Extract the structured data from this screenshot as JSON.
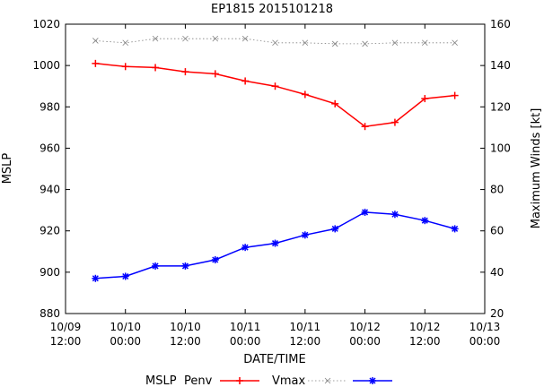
{
  "chart_data": {
    "type": "line",
    "title": "EP1815 2015101218",
    "xlabel": "DATE/TIME",
    "ylabel": "MSLP",
    "y2label": "Maximum Winds [kt]",
    "grid": false,
    "legend_position": "bottom",
    "xlim": [
      "2015-10-09 12:00",
      "2015-10-13 00:00"
    ],
    "ylim": [
      880,
      1020
    ],
    "y2lim": [
      20,
      160
    ],
    "x_ticks": [
      {
        "date": "2015-10-09 12:00",
        "line1": "10/09",
        "line2": "12:00"
      },
      {
        "date": "2015-10-10 00:00",
        "line1": "10/10",
        "line2": "00:00"
      },
      {
        "date": "2015-10-10 12:00",
        "line1": "10/10",
        "line2": "12:00"
      },
      {
        "date": "2015-10-11 00:00",
        "line1": "10/11",
        "line2": "00:00"
      },
      {
        "date": "2015-10-11 12:00",
        "line1": "10/11",
        "line2": "12:00"
      },
      {
        "date": "2015-10-12 00:00",
        "line1": "10/12",
        "line2": "00:00"
      },
      {
        "date": "2015-10-12 12:00",
        "line1": "10/12",
        "line2": "12:00"
      },
      {
        "date": "2015-10-13 00:00",
        "line1": "10/13",
        "line2": "00:00"
      }
    ],
    "y_ticks": [
      "880",
      "900",
      "920",
      "940",
      "960",
      "980",
      "1000",
      "1020"
    ],
    "y2_ticks": [
      "20",
      "40",
      "60",
      "80",
      "100",
      "120",
      "140",
      "160"
    ],
    "x": [
      "2015-10-09 18:00",
      "2015-10-10 00:00",
      "2015-10-10 06:00",
      "2015-10-10 12:00",
      "2015-10-10 18:00",
      "2015-10-11 00:00",
      "2015-10-11 06:00",
      "2015-10-11 12:00",
      "2015-10-11 18:00",
      "2015-10-12 00:00",
      "2015-10-12 06:00",
      "2015-10-12 12:00",
      "2015-10-12 18:00"
    ],
    "legend_label": "MSLP",
    "series": [
      {
        "name": "Penv",
        "axis": "y",
        "color": "#ff0000",
        "marker": "plus",
        "style": "solid",
        "values": [
          1001,
          999.5,
          999,
          997,
          996,
          992.5,
          990,
          986,
          981.5,
          970.5,
          972.5,
          984,
          985.5
        ]
      },
      {
        "name": "Vmax",
        "axis": "y",
        "color": "#808080",
        "marker": "cross",
        "style": "dotted",
        "values": [
          1012,
          1011,
          1013,
          1013,
          1013,
          1013,
          1011,
          1011,
          1010.5,
          1010.5,
          1011,
          1011,
          1011
        ]
      },
      {
        "name": "",
        "axis": "y2",
        "color": "#0000ff",
        "marker": "star",
        "style": "solid",
        "values": [
          37,
          38,
          43,
          43,
          46,
          52,
          54,
          58,
          61,
          69,
          68,
          65,
          61
        ]
      }
    ]
  }
}
